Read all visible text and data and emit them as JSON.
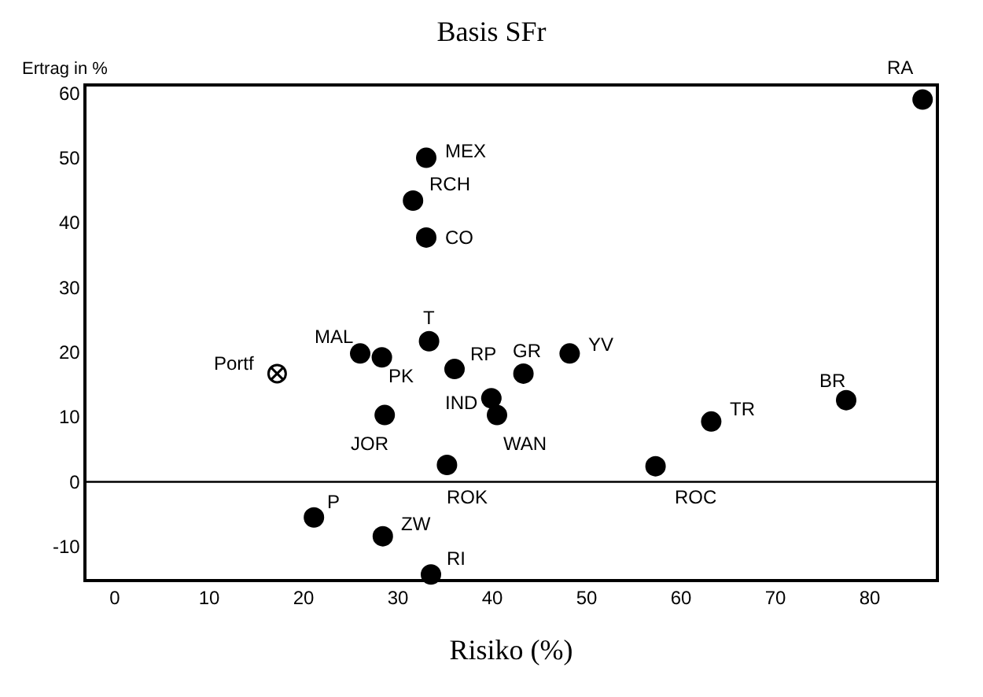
{
  "chart_data": {
    "type": "scatter",
    "title": "Basis SFr",
    "xlabel": "Risiko (%)",
    "ylabel": "Ertrag in %",
    "xlim": [
      -3,
      87
    ],
    "xticks": [
      0,
      10,
      20,
      30,
      40,
      50,
      60,
      70,
      80
    ],
    "ylim": [
      -15,
      61
    ],
    "yticks": [
      -10,
      0,
      10,
      20,
      30,
      40,
      50,
      60
    ],
    "grid": false,
    "legend": false,
    "marker": "circle",
    "ref_lines": [
      {
        "axis": "y",
        "value": 0,
        "color": "#000000"
      }
    ],
    "series": [
      {
        "name": "MEX",
        "color": "#000000",
        "x": [
          33
        ],
        "values": [
          50
        ]
      },
      {
        "name": "RCH",
        "color": "#000000",
        "x": [
          31.6
        ],
        "values": [
          43.4
        ]
      },
      {
        "name": "CO",
        "color": "#000000",
        "x": [
          33
        ],
        "values": [
          37.7
        ]
      },
      {
        "name": "T",
        "color": "#000000",
        "x": [
          33.3
        ],
        "values": [
          21.7
        ]
      },
      {
        "name": "MAL",
        "color": "#000000",
        "x": [
          26
        ],
        "values": [
          19.8
        ]
      },
      {
        "name": "PK",
        "color": "#000000",
        "x": [
          28.3
        ],
        "values": [
          19.2
        ]
      },
      {
        "name": "RP",
        "color": "#000000",
        "x": [
          36
        ],
        "values": [
          17.4
        ]
      },
      {
        "name": "GR",
        "color": "#000000",
        "x": [
          43.3
        ],
        "values": [
          16.7
        ]
      },
      {
        "name": "YV",
        "color": "#000000",
        "x": [
          48.2
        ],
        "values": [
          19.8
        ]
      },
      {
        "name": "Portf",
        "color": "#000000",
        "marker": "cross",
        "x": [
          17.2
        ],
        "values": [
          16.7
        ]
      },
      {
        "name": "IND",
        "color": "#000000",
        "x": [
          39.9
        ],
        "values": [
          12.9
        ]
      },
      {
        "name": "WAN",
        "color": "#000000",
        "x": [
          40.5
        ],
        "values": [
          10.3
        ]
      },
      {
        "name": "JOR",
        "color": "#000000",
        "x": [
          28.6
        ],
        "values": [
          10.3
        ]
      },
      {
        "name": "TR",
        "color": "#000000",
        "x": [
          63.2
        ],
        "values": [
          9.3
        ]
      },
      {
        "name": "BR",
        "color": "#000000",
        "x": [
          77.5
        ],
        "values": [
          12.6
        ]
      },
      {
        "name": "ROK",
        "color": "#000000",
        "x": [
          35.2
        ],
        "values": [
          2.6
        ]
      },
      {
        "name": "ROC",
        "color": "#000000",
        "x": [
          57.3
        ],
        "values": [
          2.4
        ]
      },
      {
        "name": "P",
        "color": "#000000",
        "x": [
          21.1
        ],
        "values": [
          -5.5
        ]
      },
      {
        "name": "ZW",
        "color": "#000000",
        "x": [
          28.4
        ],
        "values": [
          -8.4
        ]
      },
      {
        "name": "RI",
        "color": "#000000",
        "x": [
          33.5
        ],
        "values": [
          -14.3
        ]
      },
      {
        "name": "RA",
        "color": "#000000",
        "x": [
          85.6
        ],
        "values": [
          59
        ]
      }
    ]
  }
}
